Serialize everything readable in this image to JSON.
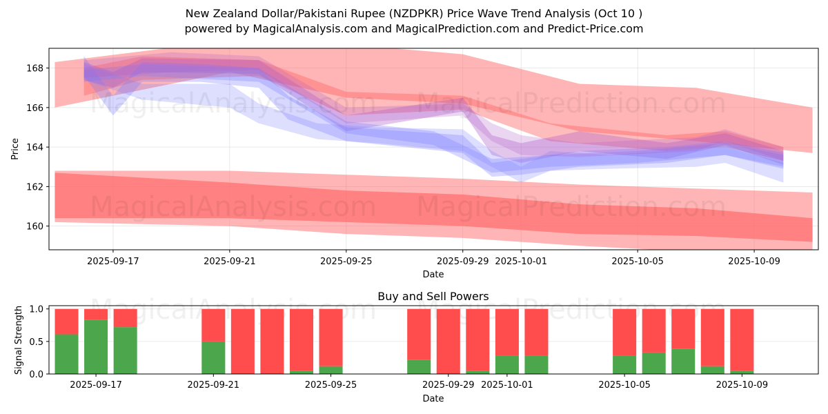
{
  "header": {
    "title": "New Zealand Dollar/Pakistani Rupee (NZDPKR) Price Wave Trend Analysis (Oct 10 )",
    "subtitle": "powered by MagicalAnalysis.com and MagicalPrediction.com and Predict-Price.com"
  },
  "watermarks": [
    "MagicalAnalysis.com",
    "MagicalPrediction.com"
  ],
  "chart_data": [
    {
      "type": "area",
      "title": "",
      "xlabel": "Date",
      "ylabel": "Price",
      "x_range": [
        "2025-09-14.8",
        "2025-10-11.2"
      ],
      "ylim": [
        158.8,
        169.0
      ],
      "yticks": [
        160,
        162,
        164,
        166,
        168
      ],
      "xticks": [
        "2025-09-17",
        "2025-09-21",
        "2025-09-25",
        "2025-09-29",
        "2025-10-01",
        "2025-10-05",
        "2025-10-09"
      ],
      "grid": true,
      "colors": {
        "red_band": "#ff6b6b",
        "blue_band": "#7b7bff"
      },
      "series": [
        {
          "name": "upper-red-wide",
          "color": "red",
          "opacity": 0.5,
          "x": [
            "2025-09-15",
            "2025-09-21",
            "2025-09-25",
            "2025-09-29",
            "2025-10-03",
            "2025-10-07",
            "2025-10-11"
          ],
          "upper": [
            168.3,
            169.4,
            169.2,
            168.7,
            167.2,
            167.0,
            166.0
          ],
          "lower": [
            166.0,
            167.8,
            166.5,
            166.2,
            164.8,
            164.3,
            163.7
          ]
        },
        {
          "name": "upper-red-narrow",
          "color": "red",
          "opacity": 0.45,
          "x": [
            "2025-09-16",
            "2025-09-18",
            "2025-09-22",
            "2025-09-25",
            "2025-09-29",
            "2025-10-02",
            "2025-10-06",
            "2025-10-08",
            "2025-10-10"
          ],
          "upper": [
            168.0,
            168.6,
            168.4,
            166.8,
            166.6,
            165.2,
            164.6,
            164.8,
            164.0
          ],
          "lower": [
            166.6,
            167.4,
            167.6,
            165.6,
            165.9,
            164.3,
            163.8,
            164.0,
            163.3
          ]
        },
        {
          "name": "upper-mix-1",
          "color": "purple",
          "opacity": 0.35,
          "x": [
            "2025-09-16",
            "2025-09-17",
            "2025-09-18",
            "2025-09-22",
            "2025-09-25",
            "2025-09-29",
            "2025-09-30",
            "2025-10-01",
            "2025-10-03",
            "2025-10-06",
            "2025-10-08",
            "2025-10-10"
          ],
          "upper": [
            168.3,
            167.8,
            168.5,
            168.4,
            165.6,
            166.5,
            164.6,
            164.2,
            164.8,
            164.2,
            164.7,
            163.8
          ],
          "lower": [
            167.4,
            167.0,
            167.8,
            167.7,
            164.8,
            165.8,
            163.6,
            163.2,
            163.8,
            163.4,
            164.1,
            163.1
          ]
        },
        {
          "name": "blue-1",
          "color": "blue",
          "opacity": 0.3,
          "x": [
            "2025-09-16",
            "2025-09-17",
            "2025-09-18",
            "2025-09-20",
            "2025-09-22",
            "2025-09-23",
            "2025-09-25",
            "2025-09-29",
            "2025-09-30",
            "2025-10-01",
            "2025-10-03",
            "2025-10-06",
            "2025-10-08",
            "2025-10-10"
          ],
          "upper": [
            168.6,
            166.6,
            168.3,
            168.2,
            168.0,
            166.6,
            165.0,
            164.6,
            163.2,
            163.4,
            163.8,
            164.0,
            164.3,
            163.7
          ],
          "lower": [
            167.6,
            165.6,
            167.3,
            167.3,
            167.0,
            165.4,
            164.3,
            163.7,
            162.5,
            162.6,
            163.0,
            163.2,
            163.6,
            162.9
          ]
        },
        {
          "name": "blue-2",
          "color": "blue",
          "opacity": 0.25,
          "x": [
            "2025-09-16",
            "2025-09-18",
            "2025-09-21",
            "2025-09-22",
            "2025-09-24",
            "2025-09-26",
            "2025-09-29",
            "2025-09-30",
            "2025-10-01",
            "2025-10-02",
            "2025-10-04",
            "2025-10-07",
            "2025-10-08",
            "2025-10-10"
          ],
          "upper": [
            168.2,
            167.2,
            167.2,
            166.2,
            165.2,
            165.0,
            164.9,
            163.8,
            163.0,
            163.8,
            163.6,
            163.9,
            164.0,
            163.2
          ],
          "lower": [
            167.4,
            166.4,
            166.0,
            165.2,
            164.4,
            164.2,
            163.8,
            163.0,
            162.2,
            162.8,
            162.9,
            163.0,
            163.2,
            162.2
          ]
        },
        {
          "name": "blue-3",
          "color": "blue",
          "opacity": 0.3,
          "x": [
            "2025-09-16",
            "2025-09-18",
            "2025-09-22",
            "2025-09-25",
            "2025-09-28",
            "2025-09-30",
            "2025-10-02",
            "2025-10-05",
            "2025-10-08",
            "2025-10-10"
          ],
          "upper": [
            167.9,
            168.2,
            168.0,
            165.3,
            164.8,
            163.4,
            163.6,
            163.8,
            164.2,
            163.6
          ],
          "lower": [
            167.3,
            167.6,
            167.3,
            164.7,
            164.1,
            162.7,
            163.0,
            163.2,
            163.6,
            163.0
          ]
        },
        {
          "name": "purple-2",
          "color": "purple",
          "opacity": 0.25,
          "x": [
            "2025-09-16",
            "2025-09-19",
            "2025-09-22",
            "2025-09-25",
            "2025-09-29",
            "2025-09-30",
            "2025-10-01",
            "2025-10-03",
            "2025-10-07",
            "2025-10-08",
            "2025-10-10"
          ],
          "upper": [
            168.4,
            168.8,
            168.6,
            166.0,
            166.2,
            165.2,
            164.6,
            164.2,
            164.5,
            164.9,
            164.0
          ],
          "lower": [
            167.5,
            167.8,
            167.9,
            165.2,
            165.6,
            164.3,
            163.6,
            163.5,
            163.8,
            164.3,
            163.3
          ]
        },
        {
          "name": "lower-red-wide",
          "color": "red",
          "opacity": 0.5,
          "x": [
            "2025-09-15",
            "2025-09-21",
            "2025-09-25",
            "2025-09-29",
            "2025-10-03",
            "2025-10-07",
            "2025-10-11"
          ],
          "upper": [
            162.8,
            162.8,
            162.6,
            162.4,
            162.1,
            161.9,
            161.7
          ],
          "lower": [
            160.2,
            160.0,
            159.6,
            159.4,
            159.0,
            158.7,
            158.4
          ]
        },
        {
          "name": "lower-red-core",
          "color": "red",
          "opacity": 0.7,
          "x": [
            "2025-09-15",
            "2025-09-21",
            "2025-09-25",
            "2025-09-29",
            "2025-10-03",
            "2025-10-07",
            "2025-10-11"
          ],
          "upper": [
            162.7,
            162.2,
            161.8,
            161.6,
            161.1,
            160.9,
            160.4
          ],
          "lower": [
            160.4,
            160.4,
            160.2,
            160.0,
            159.6,
            159.5,
            159.2
          ]
        }
      ]
    },
    {
      "type": "bar",
      "title": "Buy and Sell Powers",
      "xlabel": "Date",
      "ylabel": "Signal Strength",
      "x_range": [
        "2025-09-15.4",
        "2025-10-11.6"
      ],
      "ylim": [
        0,
        1.05
      ],
      "yticks": [
        "0.0",
        "0.5",
        "1.0"
      ],
      "xticks": [
        "2025-09-17",
        "2025-09-21",
        "2025-09-25",
        "2025-09-29",
        "2025-10-01",
        "2025-10-05",
        "2025-10-09"
      ],
      "grid": true,
      "colors": {
        "buy": "#4ca64c",
        "sell": "#ff4c4c"
      },
      "categories": [
        "2025-09-16",
        "2025-09-17",
        "2025-09-18",
        "2025-09-21",
        "2025-09-22",
        "2025-09-23",
        "2025-09-24",
        "2025-09-25",
        "2025-09-28",
        "2025-09-29",
        "2025-09-30",
        "2025-10-01",
        "2025-10-02",
        "2025-10-05",
        "2025-10-06",
        "2025-10-07",
        "2025-10-08",
        "2025-10-09"
      ],
      "series": [
        {
          "name": "Buy",
          "values": [
            0.61,
            0.83,
            0.72,
            0.5,
            0.0,
            0.0,
            0.05,
            0.12,
            0.22,
            0.0,
            0.05,
            0.28,
            0.28,
            0.28,
            0.33,
            0.39,
            0.12,
            0.05
          ]
        },
        {
          "name": "Sell",
          "values": [
            0.39,
            0.17,
            0.28,
            0.5,
            1.0,
            1.0,
            0.95,
            0.88,
            0.78,
            1.0,
            0.95,
            0.72,
            0.72,
            0.72,
            0.67,
            0.61,
            0.88,
            0.95
          ]
        }
      ]
    }
  ]
}
